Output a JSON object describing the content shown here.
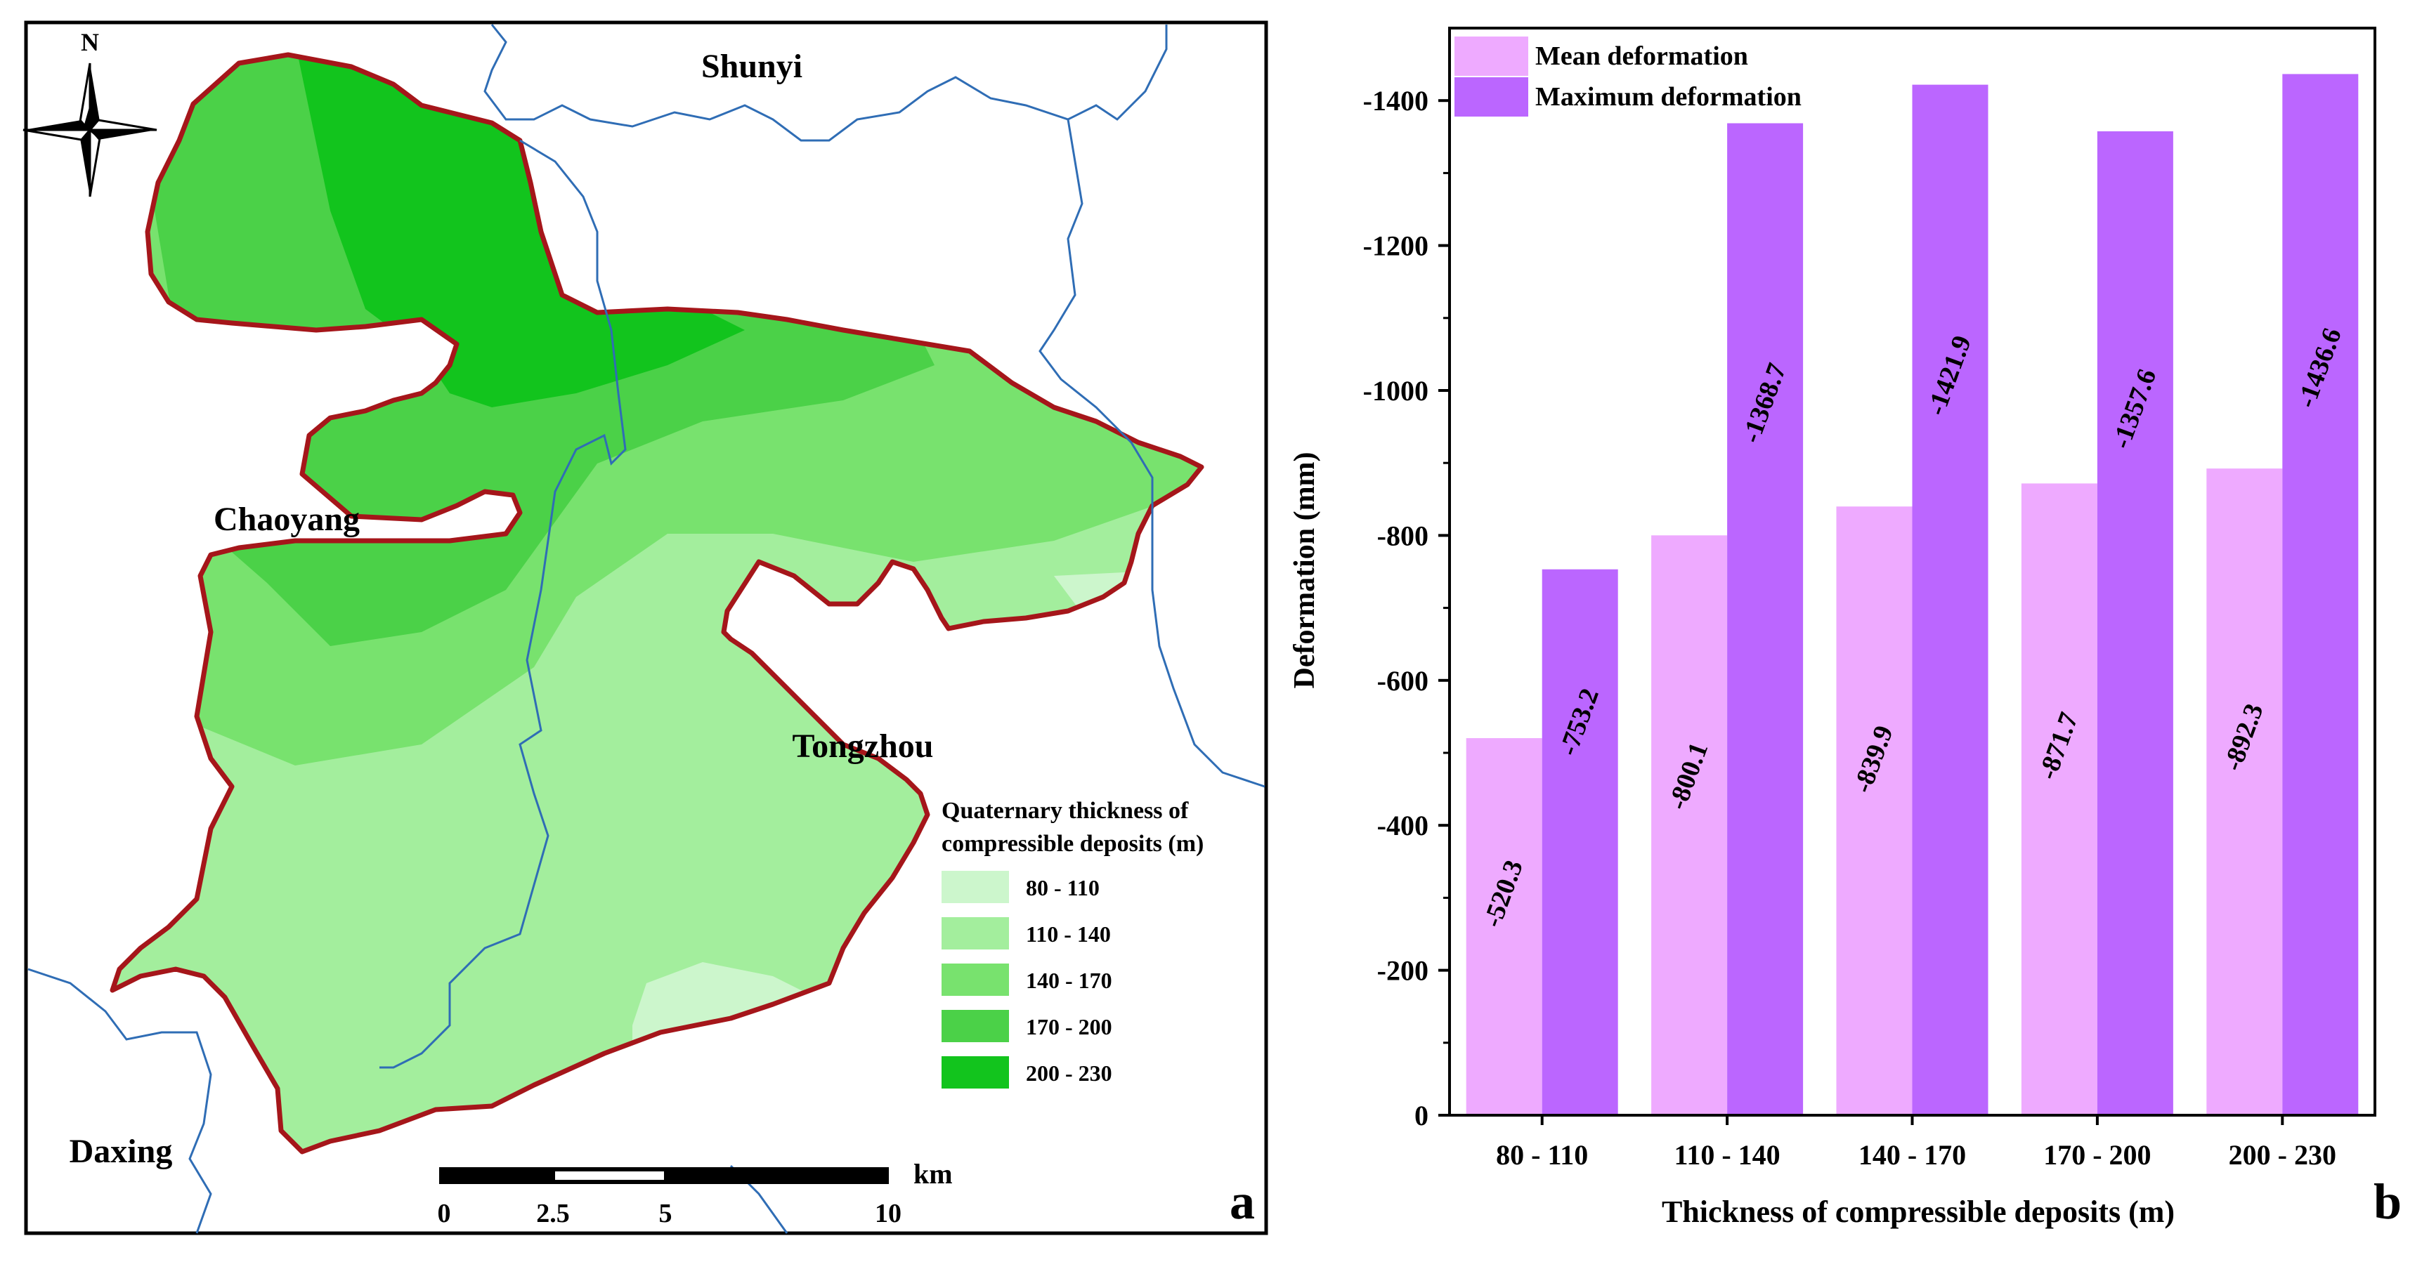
{
  "panel_a": {
    "north_label": "N",
    "districts": [
      "Shunyi",
      "Chaoyang",
      "Tongzhou",
      "Daxing"
    ],
    "legend": {
      "title_line1": "Quaternary thickness of",
      "title_line2": "compressible deposits (m)",
      "classes": [
        {
          "label": "80 - 110",
          "color": "#ccf6cc"
        },
        {
          "label": "110 - 140",
          "color": "#a3ee9d"
        },
        {
          "label": "140 - 170",
          "color": "#78e26e"
        },
        {
          "label": "170 - 200",
          "color": "#4bd148"
        },
        {
          "label": "200 - 230",
          "color": "#12c41d"
        }
      ]
    },
    "scale_bar": {
      "unit": "km",
      "ticks": [
        "0",
        "2.5",
        "5",
        "10"
      ]
    },
    "panel_label": "a",
    "colors": {
      "boundary": "#a5161a",
      "district_line": "#2f6db5"
    }
  },
  "chart_data": {
    "type": "bar",
    "title": "",
    "xlabel": "Thickness of compressible deposits (m)",
    "ylabel": "Deformation (mm)",
    "categories": [
      "80 - 110",
      "110 - 140",
      "140 - 170",
      "170 - 200",
      "200 - 230"
    ],
    "series": [
      {
        "name": "Mean deformation",
        "color": "#eeaaff",
        "values": [
          -520.3,
          -800.1,
          -839.9,
          -871.7,
          -892.3
        ],
        "labels": [
          "-520.3",
          "-800.1",
          "-839.9",
          "-871.7",
          "-892.3"
        ]
      },
      {
        "name": "Maximum deformation",
        "color": "#bb66ff",
        "values": [
          -753.2,
          -1368.7,
          -1421.9,
          -1357.6,
          -1436.6
        ],
        "labels": [
          "-753.2",
          "-1368.7",
          "-1421.9",
          "-1357.6",
          "-1436.6"
        ]
      }
    ],
    "ylim": [
      0,
      -1500
    ],
    "yticks": [
      0,
      -200,
      -400,
      -600,
      -800,
      -1000,
      -1200,
      -1400
    ],
    "ytick_labels": [
      "0",
      "-200",
      "-400",
      "-600",
      "-800",
      "-1000",
      "-1200",
      "-1400"
    ],
    "y_inverted": true,
    "legend_position": "top-left",
    "panel_label": "b"
  }
}
